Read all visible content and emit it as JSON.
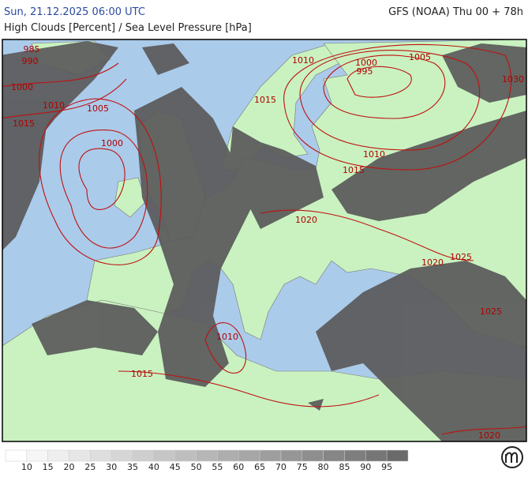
{
  "header": {
    "datetime": "Sun, 21.12.2025 06:00 UTC",
    "model": "GFS (NOAA) Thu 00 + 78h",
    "parameter": "High Clouds [Percent] / Sea Level Pressure [hPa]"
  },
  "isobars": [
    "985",
    "990",
    "1000",
    "1010",
    "1005",
    "1015",
    "1000",
    "1010",
    "1015",
    "1000",
    "995",
    "1005",
    "1030",
    "1010",
    "1015",
    "1020",
    "1020",
    "1025",
    "1025",
    "1010",
    "1015",
    "1020"
  ],
  "legend": {
    "labels": [
      "10",
      "15",
      "20",
      "25",
      "30",
      "35",
      "40",
      "45",
      "50",
      "55",
      "60",
      "65",
      "70",
      "75",
      "80",
      "85",
      "90",
      "95"
    ],
    "colors": [
      "#ffffff",
      "#f6f6f6",
      "#eeeeee",
      "#e6e6e6",
      "#dedede",
      "#d6d6d6",
      "#cecece",
      "#c6c6c6",
      "#bebebe",
      "#b6b6b6",
      "#aeaeae",
      "#a6a6a6",
      "#9e9e9e",
      "#969696",
      "#8e8e8e",
      "#868686",
      "#7e7e7e",
      "#767676",
      "#6a6a6a"
    ]
  }
}
